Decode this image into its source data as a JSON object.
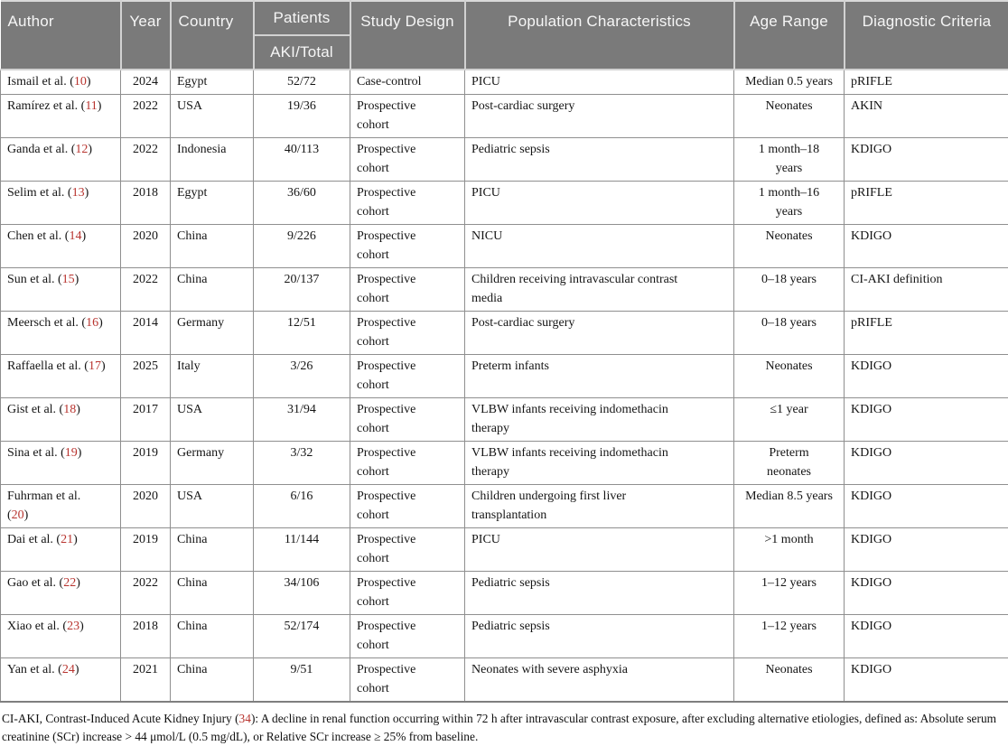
{
  "colors": {
    "header_bg": "#7a7a7a",
    "header_text": "#f6f6f6",
    "grid_line": "#8f8f8f",
    "citation_red": "#b8342f"
  },
  "table": {
    "headers": {
      "author": "Author",
      "year": "Year",
      "country": "Country",
      "patients": "Patients",
      "patients_sub": "AKI/Total",
      "study_design": "Study Design",
      "population": "Population Characteristics",
      "age_range": "Age Range",
      "diagnostic": "Diagnostic Criteria"
    },
    "rows": [
      {
        "author": "Ismail et al.",
        "ref": "10",
        "year": "2024",
        "country": "Egypt",
        "patients": "52/72",
        "design": "Case-control",
        "population": "PICU",
        "age": "Median 0.5 years",
        "criteria": "pRIFLE"
      },
      {
        "author": "Ramírez et al.",
        "ref": "11",
        "year": "2022",
        "country": "USA",
        "patients": "19/36",
        "design": "Prospective\ncohort",
        "population": "Post-cardiac surgery",
        "age": "Neonates",
        "criteria": "AKIN"
      },
      {
        "author": "Ganda et al.",
        "ref": "12",
        "year": "2022",
        "country": "Indonesia",
        "patients": "40/113",
        "design": "Prospective\ncohort",
        "population": "Pediatric sepsis",
        "age": "1 month–18\nyears",
        "criteria": "KDIGO"
      },
      {
        "author": "Selim et al.",
        "ref": "13",
        "year": "2018",
        "country": "Egypt",
        "patients": "36/60",
        "design": "Prospective\ncohort",
        "population": "PICU",
        "age": "1 month–16\nyears",
        "criteria": "pRIFLE"
      },
      {
        "author": "Chen et al.",
        "ref": "14",
        "year": "2020",
        "country": "China",
        "patients": "9/226",
        "design": "Prospective\ncohort",
        "population": "NICU",
        "age": "Neonates",
        "criteria": "KDIGO"
      },
      {
        "author": "Sun et al.",
        "ref": "15",
        "year": "2022",
        "country": "China",
        "patients": "20/137",
        "design": "Prospective\ncohort",
        "population": "Children receiving intravascular contrast\nmedia",
        "age": "0–18 years",
        "criteria": "CI-AKI definition"
      },
      {
        "author": "Meersch et al.",
        "ref": "16",
        "year": "2014",
        "country": "Germany",
        "patients": "12/51",
        "design": "Prospective\ncohort",
        "population": "Post-cardiac surgery",
        "age": "0–18 years",
        "criteria": "pRIFLE"
      },
      {
        "author": "Raffaella et al.",
        "ref": "17",
        "year": "2025",
        "country": "Italy",
        "patients": "3/26",
        "design": "Prospective\ncohort",
        "population": "Preterm infants",
        "age": "Neonates",
        "criteria": "KDIGO"
      },
      {
        "author": "Gist et al.",
        "ref": "18",
        "year": "2017",
        "country": "USA",
        "patients": "31/94",
        "design": "Prospective\ncohort",
        "population": "VLBW infants receiving indomethacin\ntherapy",
        "age": "≤1 year",
        "criteria": "KDIGO"
      },
      {
        "author": "Sina et al.",
        "ref": "19",
        "year": "2019",
        "country": "Germany",
        "patients": "3/32",
        "design": "Prospective\ncohort",
        "population": "VLBW infants receiving indomethacin\ntherapy",
        "age": "Preterm\nneonates",
        "criteria": "KDIGO"
      },
      {
        "author": "Fuhrman et al.",
        "ref": "20",
        "break_before_ref": true,
        "year": "2020",
        "country": "USA",
        "patients": "6/16",
        "design": "Prospective\ncohort",
        "population": "Children undergoing first liver\ntransplantation",
        "age": "Median 8.5 years",
        "criteria": "KDIGO"
      },
      {
        "author": "Dai et al.",
        "ref": "21",
        "year": "2019",
        "country": "China",
        "patients": "11/144",
        "design": "Prospective\ncohort",
        "population": "PICU",
        "age": ">1 month",
        "criteria": "KDIGO"
      },
      {
        "author": "Gao et al.",
        "ref": "22",
        "year": "2022",
        "country": "China",
        "patients": "34/106",
        "design": "Prospective\ncohort",
        "population": "Pediatric sepsis",
        "age": "1–12 years",
        "criteria": "KDIGO"
      },
      {
        "author": "Xiao et al.",
        "ref": "23",
        "year": "2018",
        "country": "China",
        "patients": "52/174",
        "design": "Prospective\ncohort",
        "population": "Pediatric sepsis",
        "age": "1–12 years",
        "criteria": "KDIGO"
      },
      {
        "author": "Yan et al.",
        "ref": "24",
        "year": "2021",
        "country": "China",
        "patients": "9/51",
        "design": "Prospective\ncohort",
        "population": "Neonates with severe asphyxia",
        "age": "Neonates",
        "criteria": "KDIGO"
      }
    ]
  },
  "footnote": {
    "pre": "CI-AKI, Contrast-Induced Acute Kidney Injury (",
    "ref": "34",
    "post": "): A decline in renal function occurring within 72 h after intravascular contrast exposure, after excluding alternative etiologies, defined as: Absolute serum creatinine (SCr) increase > 44 μmol/L (0.5 mg/dL), or Relative SCr increase ≥ 25% from baseline."
  }
}
